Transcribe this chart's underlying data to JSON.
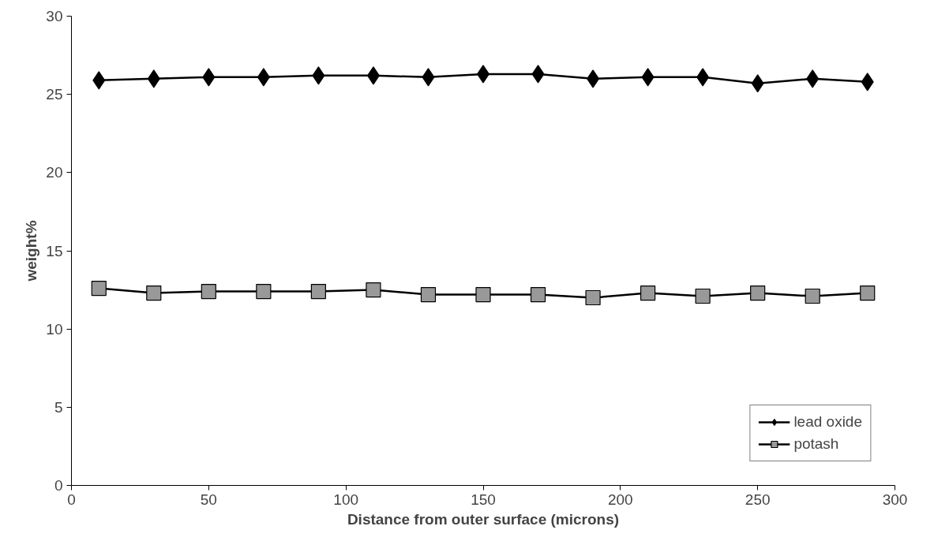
{
  "chart_data": {
    "type": "line",
    "xlabel": "Distance from outer surface (microns)",
    "ylabel": "weight%",
    "x": [
      10,
      30,
      50,
      70,
      90,
      110,
      130,
      150,
      170,
      190,
      210,
      230,
      250,
      270,
      290
    ],
    "series": [
      {
        "name": "lead oxide",
        "color": "#000000",
        "marker": "diamond",
        "values": [
          25.9,
          26.0,
          26.1,
          26.1,
          26.2,
          26.2,
          26.1,
          26.3,
          26.3,
          26.0,
          26.1,
          26.1,
          25.7,
          26.0,
          25.8
        ]
      },
      {
        "name": "potash",
        "color": "#999999",
        "marker": "square",
        "values": [
          12.6,
          12.3,
          12.4,
          12.4,
          12.4,
          12.5,
          12.2,
          12.2,
          12.2,
          12.0,
          12.3,
          12.1,
          12.3,
          12.1,
          12.3
        ]
      }
    ],
    "xlim": [
      0,
      300
    ],
    "xticks": [
      0,
      50,
      100,
      150,
      200,
      250,
      300
    ],
    "ylim": [
      0,
      30
    ],
    "yticks": [
      0,
      5,
      10,
      15,
      20,
      25,
      30
    ],
    "grid": false,
    "legend": "bottom right",
    "line_style": "solid"
  }
}
